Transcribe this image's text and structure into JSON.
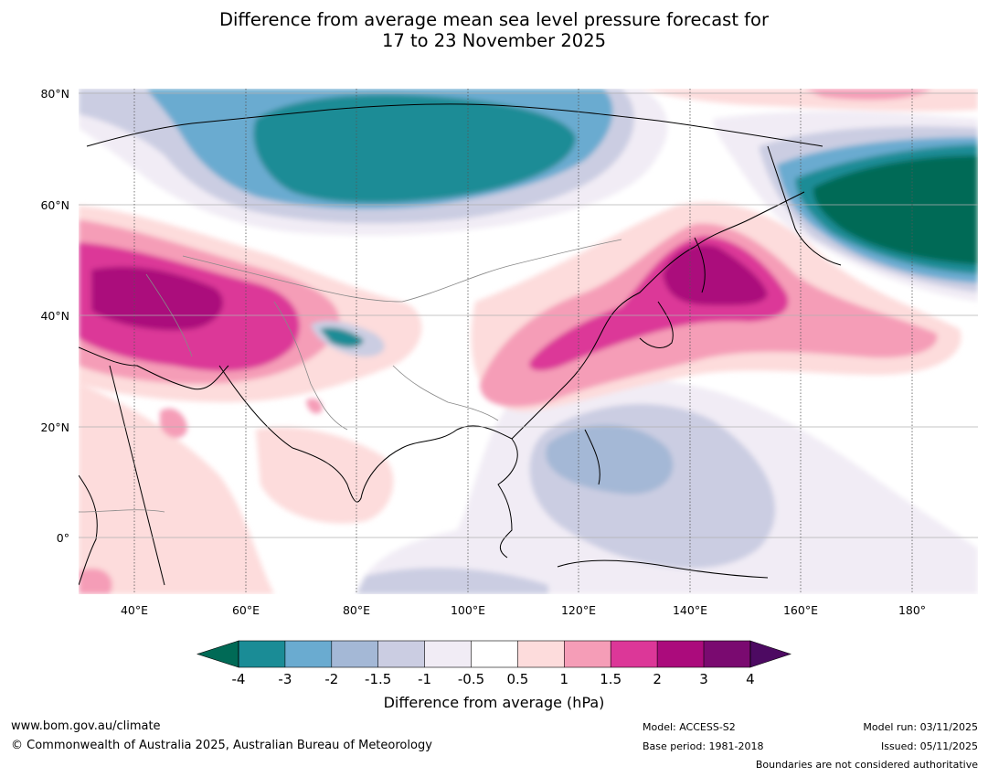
{
  "title": {
    "line1": "Difference from average mean sea level pressure forecast for",
    "line2": "17 to 23 November 2025"
  },
  "map": {
    "lat_ticks": [
      "80°N",
      "60°N",
      "40°N",
      "20°N",
      "0°"
    ],
    "lon_ticks": [
      "40°E",
      "60°E",
      "80°E",
      "100°E",
      "120°E",
      "140°E",
      "160°E",
      "180°"
    ],
    "extent": {
      "lon_min": 30,
      "lon_max": 190,
      "lat_min": -10,
      "lat_max": 81
    }
  },
  "colorbar": {
    "labels": [
      "-4",
      "-3",
      "-2",
      "-1.5",
      "-1",
      "-0.5",
      "0.5",
      "1",
      "1.5",
      "2",
      "3",
      "4"
    ],
    "colors": [
      "#1a8c96",
      "#6aabd0",
      "#a4b8d6",
      "#cbcde2",
      "#f1ecf5",
      "#ffffff",
      "#fddcdc",
      "#f59db7",
      "#dc3798",
      "#ab0b7c",
      "#7a0a70"
    ],
    "under_color": "#006a56",
    "over_color": "#4d0a62",
    "title": "Difference from average (hPa)"
  },
  "footer": {
    "website": "www.bom.gov.au/climate",
    "copyright": "© Commonwealth of Australia 2025, Australian Bureau of Meteorology",
    "model": "Model: ACCESS-S2",
    "base_period": "Base period: 1981-2018",
    "model_run": "Model run: 03/11/2025",
    "issued": "Issued: 05/11/2025",
    "disclaimer": "Boundaries are not considered authoritative"
  }
}
